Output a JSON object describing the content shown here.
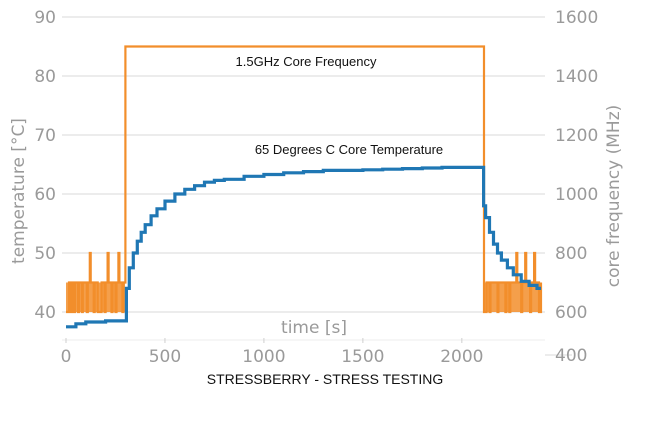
{
  "chart_data": {
    "type": "line",
    "caption": "STRESSBERRY - STRESS TESTING",
    "xlabel": "time [s]",
    "ylabel_left": "temperature [°C]",
    "ylabel_right": "core frequency (MHz)",
    "xlim": [
      0,
      2400
    ],
    "ylim_left": [
      36.5,
      90
    ],
    "ylim_right": [
      400,
      1600
    ],
    "x_ticks": [
      0,
      500,
      1000,
      1500,
      2000
    ],
    "x_tick_labels": [
      "0",
      "500",
      "1000",
      "1500",
      "2000"
    ],
    "y_left_ticks": [
      40,
      50,
      60,
      70,
      80,
      90
    ],
    "y_left_tick_labels": [
      "40",
      "50",
      "60",
      "70",
      "80",
      "90"
    ],
    "y_right_ticks": [
      400,
      600,
      800,
      1000,
      1200,
      1400,
      1600
    ],
    "y_right_tick_labels": [
      "400",
      "600",
      "800",
      "1000",
      "1200",
      "1400",
      "1600"
    ],
    "grid": true,
    "annotations": [
      {
        "text": "1.5GHz Core Frequency",
        "x": 1200,
        "y_right": 1480
      },
      {
        "text": "65 Degrees C Core Temperature",
        "x": 1200,
        "y_left": 67.5
      }
    ],
    "series": [
      {
        "name": "core frequency",
        "axis": "right",
        "color": "#f28e2b",
        "points": [
          [
            0,
            600
          ],
          [
            15,
            700
          ],
          [
            25,
            600
          ],
          [
            30,
            700
          ],
          [
            40,
            600
          ],
          [
            45,
            700
          ],
          [
            60,
            600
          ],
          [
            65,
            700
          ],
          [
            80,
            600
          ],
          [
            85,
            700
          ],
          [
            100,
            700
          ],
          [
            105,
            600
          ],
          [
            110,
            700
          ],
          [
            120,
            800
          ],
          [
            125,
            700
          ],
          [
            140,
            600
          ],
          [
            145,
            700
          ],
          [
            160,
            600
          ],
          [
            165,
            600
          ],
          [
            180,
            700
          ],
          [
            195,
            600
          ],
          [
            200,
            700
          ],
          [
            210,
            800
          ],
          [
            215,
            700
          ],
          [
            230,
            600
          ],
          [
            235,
            700
          ],
          [
            250,
            600
          ],
          [
            255,
            700
          ],
          [
            265,
            800
          ],
          [
            270,
            700
          ],
          [
            285,
            600
          ],
          [
            290,
            700
          ],
          [
            298,
            700
          ],
          [
            300,
            1500
          ],
          [
            2110,
            1500
          ],
          [
            2112,
            600
          ],
          [
            2125,
            700
          ],
          [
            2140,
            600
          ],
          [
            2145,
            700
          ],
          [
            2170,
            700
          ],
          [
            2180,
            600
          ],
          [
            2185,
            700
          ],
          [
            2210,
            700
          ],
          [
            2220,
            600
          ],
          [
            2225,
            700
          ],
          [
            2240,
            600
          ],
          [
            2245,
            700
          ],
          [
            2275,
            800
          ],
          [
            2280,
            700
          ],
          [
            2300,
            600
          ],
          [
            2305,
            700
          ],
          [
            2320,
            800
          ],
          [
            2325,
            700
          ],
          [
            2345,
            600
          ],
          [
            2350,
            700
          ],
          [
            2365,
            800
          ],
          [
            2370,
            700
          ],
          [
            2390,
            600
          ],
          [
            2400,
            700
          ]
        ]
      },
      {
        "name": "core temperature",
        "axis": "left",
        "color": "#1f77b4",
        "points": [
          [
            0,
            37.5
          ],
          [
            50,
            38
          ],
          [
            100,
            38.3
          ],
          [
            150,
            38.3
          ],
          [
            200,
            38.5
          ],
          [
            250,
            38.5
          ],
          [
            298,
            38.5
          ],
          [
            305,
            44
          ],
          [
            320,
            47.5
          ],
          [
            340,
            50
          ],
          [
            360,
            52
          ],
          [
            380,
            53.5
          ],
          [
            400,
            54.8
          ],
          [
            430,
            56.3
          ],
          [
            460,
            57.5
          ],
          [
            500,
            58.8
          ],
          [
            550,
            60
          ],
          [
            600,
            60.8
          ],
          [
            650,
            61.4
          ],
          [
            700,
            62
          ],
          [
            750,
            62.3
          ],
          [
            800,
            62.5
          ],
          [
            900,
            63
          ],
          [
            1000,
            63.3
          ],
          [
            1100,
            63.6
          ],
          [
            1200,
            63.8
          ],
          [
            1300,
            64
          ],
          [
            1400,
            64
          ],
          [
            1500,
            64.1
          ],
          [
            1600,
            64.2
          ],
          [
            1700,
            64.3
          ],
          [
            1800,
            64.4
          ],
          [
            1900,
            64.5
          ],
          [
            2000,
            64.5
          ],
          [
            2100,
            64.5
          ],
          [
            2110,
            58
          ],
          [
            2120,
            56
          ],
          [
            2140,
            53.5
          ],
          [
            2160,
            51.5
          ],
          [
            2180,
            50
          ],
          [
            2200,
            48.8
          ],
          [
            2230,
            47.5
          ],
          [
            2260,
            46.3
          ],
          [
            2300,
            45.2
          ],
          [
            2340,
            44.5
          ],
          [
            2380,
            44
          ],
          [
            2400,
            44
          ]
        ]
      }
    ]
  }
}
